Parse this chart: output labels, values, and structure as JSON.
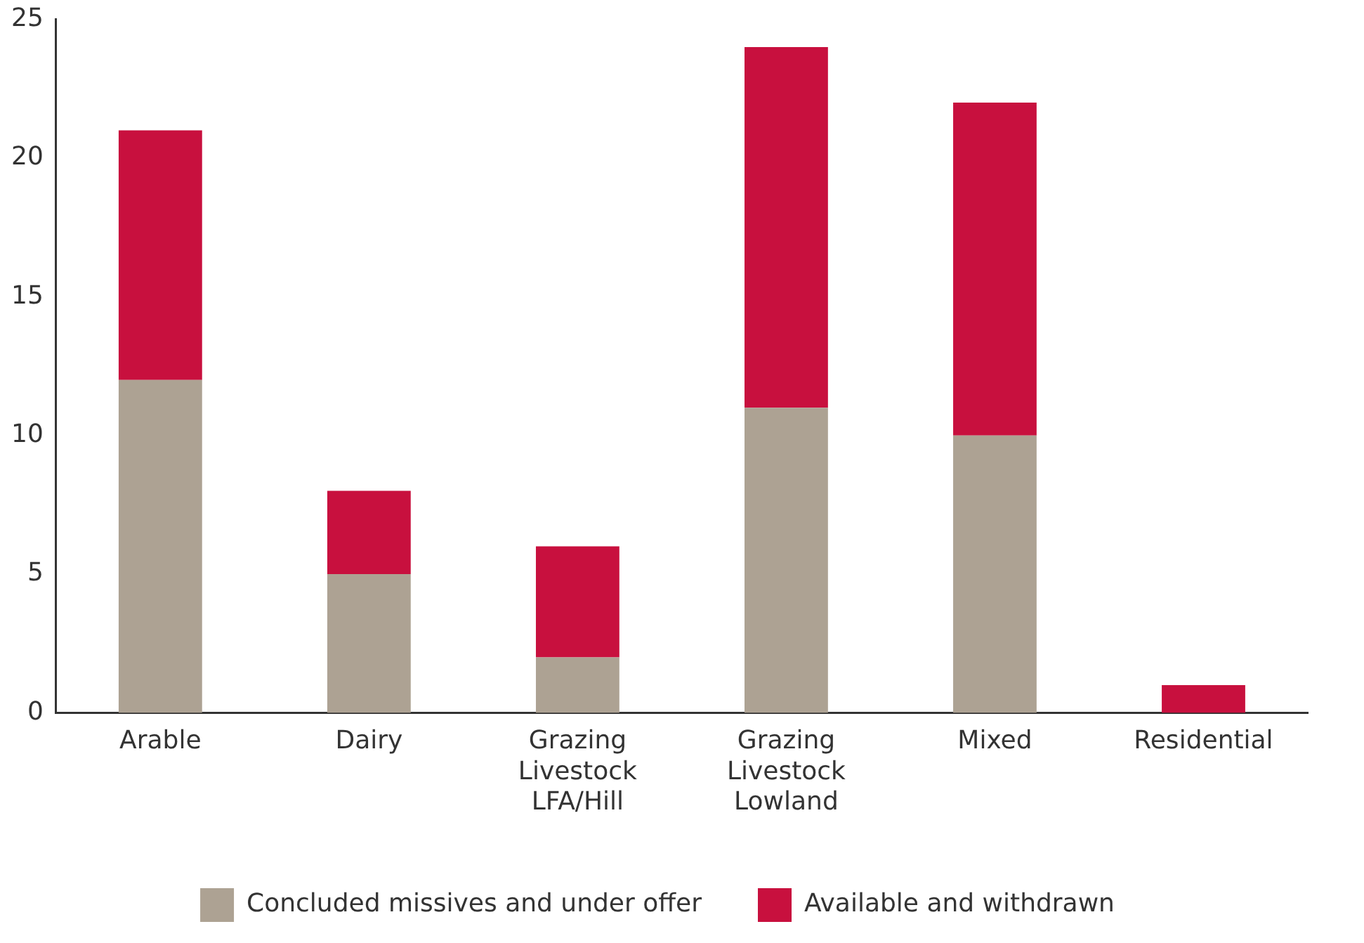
{
  "chart_data": {
    "type": "bar",
    "stacked": true,
    "categories": [
      "Arable",
      "Dairy",
      "Grazing Livestock LFA/Hill",
      "Grazing Livestock Lowland",
      "Mixed",
      "Residential"
    ],
    "series": [
      {
        "name": "Concluded missives and under offer",
        "color": "#ada293",
        "values": [
          12,
          5,
          2,
          11,
          10,
          0
        ]
      },
      {
        "name": "Available and withdrawn",
        "color": "#c8103e",
        "values": [
          9,
          3,
          4,
          13,
          12,
          1
        ]
      }
    ],
    "ylim": [
      0,
      25
    ],
    "yticks": [
      0,
      5,
      10,
      15,
      20,
      25
    ],
    "grid": false,
    "legend": "bottom"
  }
}
